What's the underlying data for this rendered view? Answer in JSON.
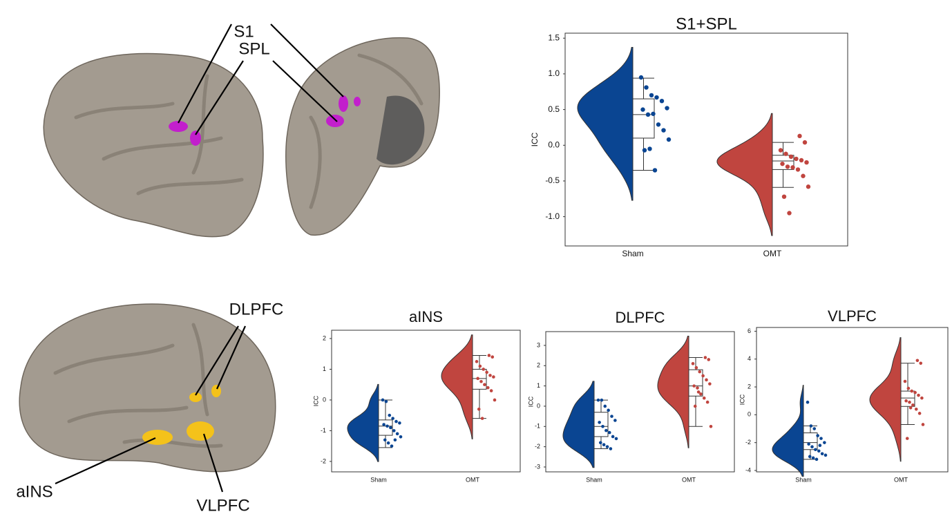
{
  "brain_labels": [
    "S1",
    "SPL",
    "DLPFC",
    "aINS",
    "VLPFC"
  ],
  "chart_data": [
    {
      "type": "raincloud",
      "title": "S1+SPL",
      "ylabel": "ICC",
      "categories": [
        "Sham",
        "OMT"
      ],
      "colors": [
        "#0a4592",
        "#c0453f"
      ],
      "values": [
        [
          0.95,
          0.81,
          0.7,
          0.67,
          0.62,
          0.52,
          0.5,
          0.43,
          0.44,
          0.29,
          0.21,
          0.08,
          -0.07,
          -0.05,
          -0.35
        ],
        [
          0.13,
          0.04,
          -0.07,
          -0.12,
          -0.16,
          -0.19,
          -0.21,
          -0.24,
          -0.26,
          -0.3,
          -0.31,
          -0.34,
          -0.43,
          -0.58,
          -0.72,
          -0.95
        ]
      ],
      "boxes": [
        {
          "whisker_low": -0.35,
          "q1": 0.1,
          "median": 0.43,
          "q3": 0.65,
          "whisker_high": 0.94
        },
        {
          "whisker_low": -0.59,
          "q1": -0.34,
          "median": -0.22,
          "q3": -0.14,
          "whisker_high": 0.04
        }
      ],
      "ylim": [
        -1.41,
        1.57
      ],
      "yticks": [
        {
          "value": -1,
          "label": "-1.0"
        },
        {
          "value": -0.5,
          "label": "-0.5"
        },
        {
          "value": 0,
          "label": "0.0"
        },
        {
          "value": 0.5,
          "label": "0.5"
        },
        {
          "value": 1,
          "label": "1.0"
        },
        {
          "value": 1.5,
          "label": "1.5"
        }
      ]
    },
    {
      "type": "raincloud",
      "title": "aINS",
      "ylabel": "ICC",
      "categories": [
        "Sham",
        "OMT"
      ],
      "colors": [
        "#0a4592",
        "#c0453f"
      ],
      "values": [
        [
          0.0,
          -0.05,
          -0.5,
          -0.6,
          -0.7,
          -0.75,
          -0.8,
          -0.85,
          -0.9,
          -1.0,
          -1.1,
          -1.2,
          -1.3,
          -1.4,
          -1.5,
          -1.3
        ],
        [
          1.45,
          1.4,
          1.25,
          1.1,
          1.0,
          0.9,
          0.8,
          0.75,
          0.7,
          0.6,
          0.5,
          0.4,
          0.3,
          0.0,
          -0.3,
          -0.6
        ]
      ],
      "boxes": [
        {
          "whisker_low": -1.55,
          "q1": -1.15,
          "median": -0.85,
          "q3": -0.65,
          "whisker_high": 0.0
        },
        {
          "whisker_low": -0.6,
          "q1": 0.35,
          "median": 0.7,
          "q3": 1.0,
          "whisker_high": 1.45
        }
      ],
      "ylim": [
        -2.34,
        2.27
      ],
      "yticks": [
        -2,
        -1,
        0,
        1,
        2
      ]
    },
    {
      "type": "raincloud",
      "title": "DLPFC",
      "ylabel": "ICC",
      "categories": [
        "Sham",
        "OMT"
      ],
      "colors": [
        "#0a4592",
        "#c0453f"
      ],
      "values": [
        [
          0.3,
          0.3,
          0.0,
          -0.2,
          -0.5,
          -0.7,
          -0.8,
          -1.0,
          -1.2,
          -1.3,
          -1.5,
          -1.6,
          -1.8,
          -1.9,
          -2.0,
          -2.1
        ],
        [
          2.4,
          2.3,
          2.1,
          1.9,
          1.7,
          1.5,
          1.3,
          1.1,
          1.0,
          0.9,
          0.6,
          0.4,
          0.2,
          -1.0,
          0.0,
          0.7
        ]
      ],
      "boxes": [
        {
          "whisker_low": -2.1,
          "q1": -1.5,
          "median": -1.0,
          "q3": -0.3,
          "whisker_high": 0.3
        },
        {
          "whisker_low": -1.0,
          "q1": 0.5,
          "median": 1.0,
          "q3": 1.8,
          "whisker_high": 2.4
        }
      ],
      "ylim": [
        -3.24,
        3.68
      ],
      "yticks": [
        -3,
        -2,
        -1,
        0,
        1,
        2,
        3
      ]
    },
    {
      "type": "raincloud",
      "title": "VLPFC",
      "ylabel": "ICC",
      "categories": [
        "Sham",
        "OMT"
      ],
      "colors": [
        "#0a4592",
        "#c0453f"
      ],
      "values": [
        [
          0.9,
          -0.8,
          -1.0,
          -1.5,
          -1.7,
          -2.0,
          -2.1,
          -2.3,
          -2.5,
          -2.6,
          -2.8,
          -2.9,
          -3.0,
          -3.1,
          -3.2,
          -2.2
        ],
        [
          3.9,
          3.7,
          2.4,
          1.9,
          1.7,
          1.6,
          1.4,
          1.2,
          1.0,
          0.9,
          0.7,
          0.4,
          0.1,
          -0.7,
          -1.7,
          0.5
        ]
      ],
      "boxes": [
        {
          "whisker_low": -3.2,
          "q1": -2.5,
          "median": -2.0,
          "q3": -1.3,
          "whisker_high": -0.8
        },
        {
          "whisker_low": -0.7,
          "q1": 0.6,
          "median": 1.2,
          "q3": 1.7,
          "whisker_high": 3.7
        }
      ],
      "ylim": [
        -4.1,
        6.27
      ],
      "yticks": [
        -4,
        -2,
        0,
        2,
        4,
        6
      ]
    }
  ]
}
